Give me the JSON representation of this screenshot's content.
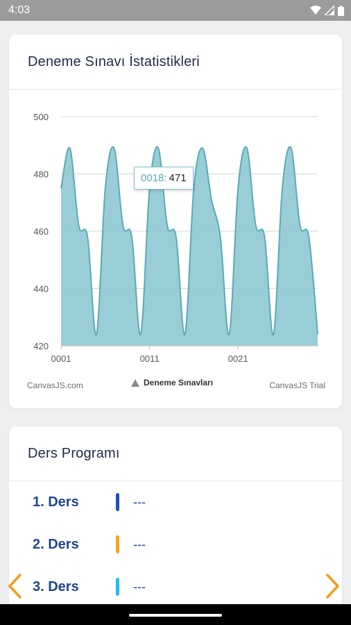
{
  "status_bar": {
    "time": "4:03"
  },
  "stats_card": {
    "title": "Deneme Sınavı İstatistikleri",
    "credit_left": "CanvasJS.com",
    "credit_right": "CanvasJS Trial",
    "tooltip": {
      "label": "0018:",
      "value": "471"
    }
  },
  "chart_data": {
    "type": "area",
    "title": "",
    "xlabel": "",
    "ylabel": "",
    "ylim": [
      420,
      500
    ],
    "y_ticks": [
      500,
      480,
      460,
      440,
      420
    ],
    "x_ticks": [
      "0001",
      "0011",
      "0021"
    ],
    "grid": true,
    "legend_position": "bottom-center",
    "series": [
      {
        "name": "Deneme Sınavları",
        "color": "#8ec9d1",
        "line_color": "#5aaab7",
        "x": [
          "0001",
          "0002",
          "0003",
          "0004",
          "0005",
          "0006",
          "0007",
          "0008",
          "0009",
          "0010",
          "0011",
          "0012",
          "0013",
          "0014",
          "0015",
          "0016",
          "0017",
          "0018",
          "0019",
          "0020",
          "0021",
          "0022",
          "0023",
          "0024",
          "0025",
          "0026",
          "0027",
          "0028",
          "0029",
          "0030"
        ],
        "values": [
          475,
          489,
          462,
          458,
          424,
          475,
          489,
          462,
          458,
          424,
          475,
          489,
          462,
          458,
          424,
          475,
          489,
          471,
          458,
          424,
          475,
          489,
          462,
          458,
          424,
          475,
          489,
          462,
          458,
          424
        ]
      }
    ]
  },
  "program_card": {
    "title": "Ders Programı",
    "lessons": [
      {
        "name": "1. Ders",
        "value": "---",
        "color": "#1f4fbf"
      },
      {
        "name": "2. Ders",
        "value": "---",
        "color": "#f5a623"
      },
      {
        "name": "3. Ders",
        "value": "---",
        "color": "#29b6f6"
      }
    ]
  },
  "nav": {
    "arrow_color": "#f59a1a"
  }
}
